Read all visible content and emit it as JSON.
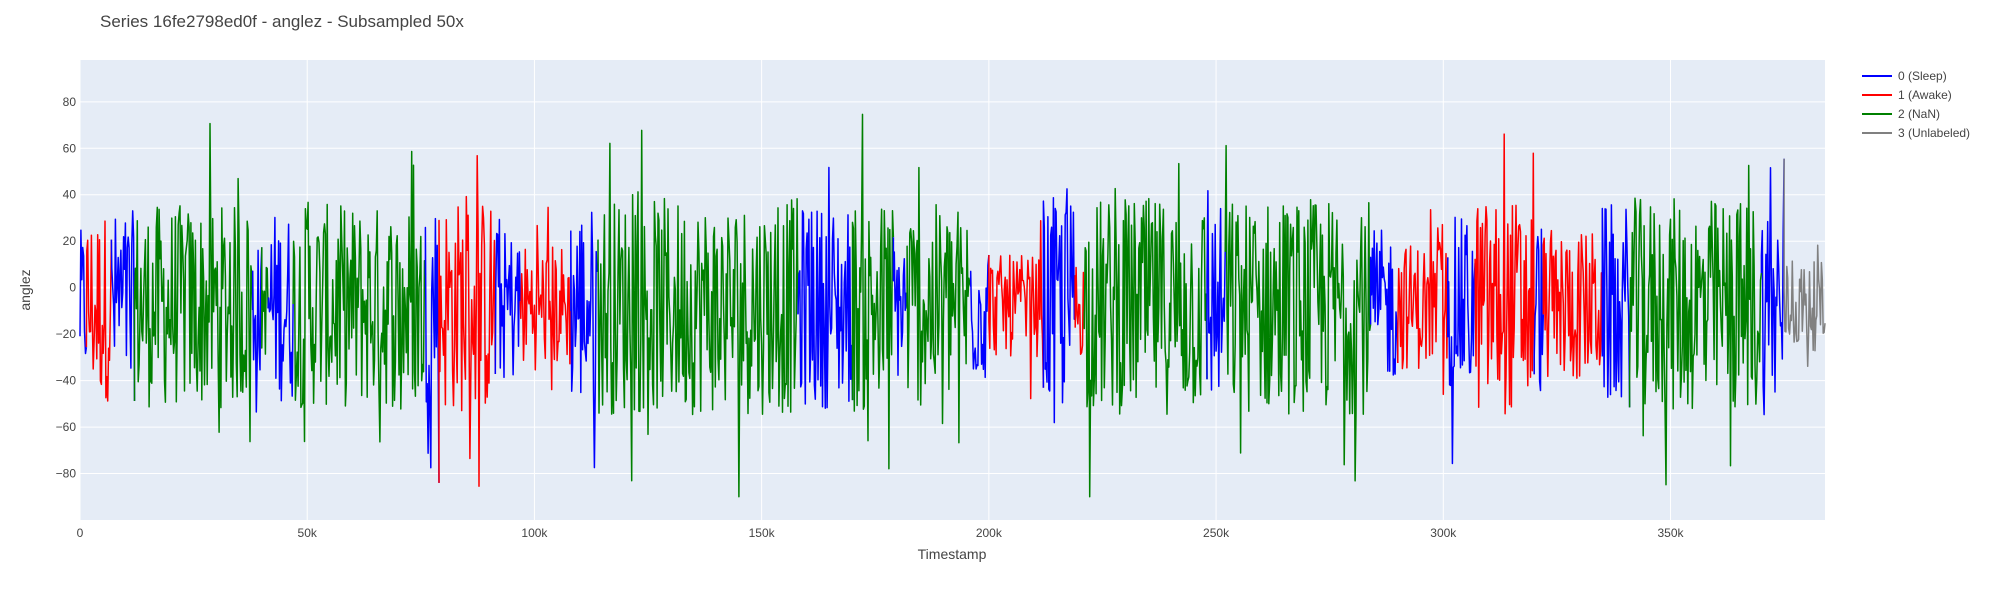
{
  "chart_data": {
    "type": "line",
    "title": "Series 16fe2798ed0f - anglez - Subsampled 50x",
    "xlabel": "Timestamp",
    "ylabel": "anglez",
    "xlim": [
      0,
      384000
    ],
    "ylim": [
      -100,
      98
    ],
    "x_ticks": [
      0,
      50000,
      100000,
      150000,
      200000,
      250000,
      300000,
      350000
    ],
    "x_tick_labels": [
      "0",
      "50k",
      "100k",
      "150k",
      "200k",
      "250k",
      "300k",
      "350k"
    ],
    "y_ticks": [
      -80,
      -60,
      -40,
      -20,
      0,
      20,
      40,
      60,
      80
    ],
    "y_tick_labels": [
      "−80",
      "−60",
      "−40",
      "−20",
      "0",
      "20",
      "40",
      "60",
      "80"
    ],
    "grid": true,
    "legend_position": "top-right",
    "series": [
      {
        "name": "0 (Sleep)",
        "color": "#0000ff"
      },
      {
        "name": "1 (Awake)",
        "color": "#ff0000"
      },
      {
        "name": "2 (NaN)",
        "color": "#008000"
      },
      {
        "name": "3 (Unlabeled)",
        "color": "#808080"
      }
    ],
    "segments": [
      {
        "series": 0,
        "x": [
          0,
          1500
        ],
        "amp": 60
      },
      {
        "series": 1,
        "x": [
          1500,
          7000
        ],
        "amp": 75
      },
      {
        "series": 0,
        "x": [
          7000,
          12000
        ],
        "amp": 75
      },
      {
        "series": 2,
        "x": [
          12000,
          38000
        ],
        "amp": 80
      },
      {
        "series": 0,
        "x": [
          38000,
          40000
        ],
        "amp": 50
      },
      {
        "series": 2,
        "x": [
          40000,
          41500
        ],
        "amp": 40
      },
      {
        "series": 0,
        "x": [
          41500,
          47000
        ],
        "amp": 75
      },
      {
        "series": 2,
        "x": [
          47000,
          76000
        ],
        "amp": 80
      },
      {
        "series": 0,
        "x": [
          76000,
          79000
        ],
        "amp": 80
      },
      {
        "series": 1,
        "x": [
          79000,
          91500
        ],
        "amp": 85
      },
      {
        "series": 0,
        "x": [
          91500,
          97000
        ],
        "amp": 60
      },
      {
        "series": 1,
        "x": [
          97000,
          108000
        ],
        "amp": 50
      },
      {
        "series": 0,
        "x": [
          108000,
          114000
        ],
        "amp": 80
      },
      {
        "series": 2,
        "x": [
          114000,
          158000
        ],
        "amp": 85
      },
      {
        "series": 0,
        "x": [
          158000,
          170000
        ],
        "amp": 80
      },
      {
        "series": 2,
        "x": [
          170000,
          179000
        ],
        "amp": 85
      },
      {
        "series": 0,
        "x": [
          179000,
          182000
        ],
        "amp": 60
      },
      {
        "series": 2,
        "x": [
          182000,
          196000
        ],
        "amp": 80
      },
      {
        "series": 0,
        "x": [
          196000,
          200000
        ],
        "amp": 60
      },
      {
        "series": 1,
        "x": [
          200000,
          212000
        ],
        "amp": 40
      },
      {
        "series": 0,
        "x": [
          212000,
          219000
        ],
        "amp": 85
      },
      {
        "series": 1,
        "x": [
          219000,
          221000
        ],
        "amp": 40
      },
      {
        "series": 2,
        "x": [
          221000,
          248000
        ],
        "amp": 85
      },
      {
        "series": 0,
        "x": [
          248000,
          252000
        ],
        "amp": 80
      },
      {
        "series": 2,
        "x": [
          252000,
          284000
        ],
        "amp": 85
      },
      {
        "series": 0,
        "x": [
          284000,
          290000
        ],
        "amp": 60
      },
      {
        "series": 1,
        "x": [
          290000,
          301000
        ],
        "amp": 50
      },
      {
        "series": 0,
        "x": [
          301000,
          307000
        ],
        "amp": 70
      },
      {
        "series": 1,
        "x": [
          307000,
          320000
        ],
        "amp": 85
      },
      {
        "series": 0,
        "x": [
          320000,
          322000
        ],
        "amp": 70
      },
      {
        "series": 1,
        "x": [
          322000,
          335000
        ],
        "amp": 60
      },
      {
        "series": 0,
        "x": [
          335000,
          341000
        ],
        "amp": 80
      },
      {
        "series": 2,
        "x": [
          341000,
          370000
        ],
        "amp": 85
      },
      {
        "series": 0,
        "x": [
          370000,
          375000
        ],
        "amp": 85
      },
      {
        "series": 3,
        "x": [
          375000,
          384000
        ],
        "amp": 35
      }
    ]
  }
}
